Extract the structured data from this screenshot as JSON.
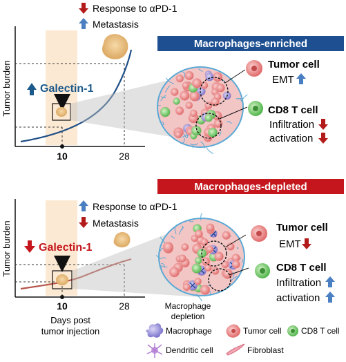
{
  "colors": {
    "enriched_banner": "#1d4f91",
    "depleted_banner": "#c4161c",
    "up_arrow_blue": "#4a7fc1",
    "down_arrow_red": "#b31b1b",
    "curve_enriched": "#1f4f86",
    "curve_depleted": "#b5544a",
    "highlight_band": "#fbe3c8",
    "capsule_fill": "#f0c8c8",
    "fibroblast_blue": "#5aa9d6",
    "galectin_blue": "#1c5a8c",
    "galectin_red": "#c4161c"
  },
  "top_panel": {
    "response_label": "Response to αPD-1",
    "response_direction": "down",
    "metastasis_label": "Metastasis",
    "metastasis_direction": "up",
    "y_axis_label": "Tumor burden",
    "galectin_label": "Galectin-1",
    "galectin_direction": "up",
    "tick_10": "10",
    "tick_28": "28",
    "banner": "Macrophages-enriched",
    "tumor_cell_label": "Tumor cell",
    "emt_label": "EMT",
    "emt_direction": "up",
    "cd8_label": "CD8 T cell",
    "infiltration_label": "Infiltration",
    "infiltration_direction": "down",
    "activation_label": "activation",
    "activation_direction": "down"
  },
  "bottom_panel": {
    "response_label": "Response to αPD-1",
    "response_direction": "up",
    "metastasis_label": "Metastasis",
    "metastasis_direction": "down",
    "y_axis_label": "Tumor burden",
    "galectin_label": "Galectin-1",
    "galectin_direction": "down",
    "tick_10": "10",
    "tick_28": "28",
    "x_axis_label_line1": "Days post",
    "x_axis_label_line2": "tumor injection",
    "banner": "Macrophages-depleted",
    "tumor_cell_label": "Tumor cell",
    "emt_label": "EMT",
    "emt_direction": "down",
    "cd8_label": "CD8 T cell",
    "infiltration_label": "Infiltration",
    "infiltration_direction": "up",
    "activation_label": "activation",
    "activation_direction": "up",
    "depletion_label_line1": "Macrophage",
    "depletion_label_line2": "depletion"
  },
  "legend": {
    "macrophage": "Macrophage",
    "tumor_cell": "Tumor cell",
    "cd8_t_cell": "CD8 T cell",
    "dendritic_cell": "Dendritic cell",
    "fibroblast": "Fibroblast"
  }
}
